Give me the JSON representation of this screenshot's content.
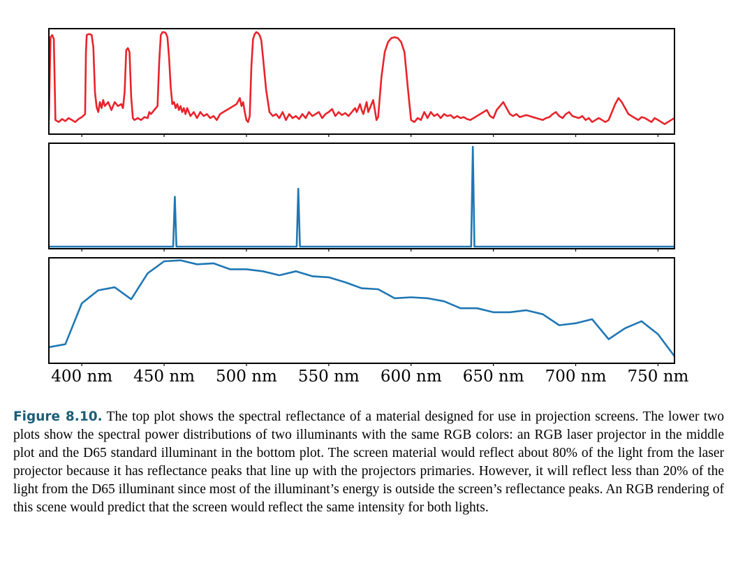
{
  "caption": {
    "label": "Figure 8.10.",
    "text": "The top plot shows the spectral reflectance of a material designed for use in projection screens. The lower two plots show the spectral power distributions of two illuminants with the same RGB colors: an RGB laser projector in the middle plot and the D65 standard illuminant in the bottom plot.  The screen material would reflect about 80% of the light from the laser projector because it has reflectance peaks that line up with the projectors primaries. However, it will reflect less than 20% of the light from the D65 illuminant since most of the illuminant’s energy is outside the screen’s reflectance peaks. An RGB rendering of this scene would predict that the screen would reflect the same intensity for both lights."
  },
  "chart_data": [
    {
      "type": "line",
      "title": "",
      "xlabel": "",
      "ylabel": "",
      "xlim": [
        380,
        760
      ],
      "ylim": [
        0,
        1.0
      ],
      "color": "#e8232a",
      "x": [
        380,
        381,
        382,
        383,
        384,
        386,
        388,
        390,
        392,
        394,
        396,
        398,
        400,
        402,
        402.5,
        403,
        404,
        405,
        406,
        407,
        408,
        409,
        410,
        411,
        412,
        413,
        414,
        416,
        418,
        420,
        422,
        424,
        425,
        426,
        427,
        428,
        429,
        430,
        431,
        432,
        434,
        436,
        438,
        440,
        441,
        442,
        444,
        446,
        447,
        448,
        449,
        450,
        451,
        452,
        453,
        454,
        455,
        456,
        457,
        458,
        459,
        460,
        461,
        462,
        463,
        464,
        466,
        468,
        470,
        472,
        474,
        476,
        478,
        480,
        482,
        484,
        486,
        488,
        490,
        492,
        494,
        496,
        497,
        498,
        499,
        500,
        501,
        502,
        503,
        504,
        505,
        506,
        507,
        508,
        509,
        510,
        512,
        514,
        516,
        518,
        520,
        522,
        524,
        526,
        528,
        530,
        532,
        534,
        536,
        538,
        540,
        542,
        544,
        546,
        548,
        550,
        552,
        554,
        556,
        558,
        560,
        562,
        564,
        565,
        566,
        567,
        568,
        569,
        570,
        571,
        572,
        573,
        574,
        575,
        576,
        577,
        578,
        579,
        580,
        582,
        584,
        586,
        588,
        590,
        592,
        594,
        596,
        598,
        600,
        602,
        604,
        606,
        608,
        610,
        612,
        614,
        616,
        618,
        620,
        622,
        624,
        626,
        628,
        630,
        632,
        634,
        636,
        638,
        640,
        642,
        644,
        646,
        648,
        650,
        652,
        654,
        656,
        658,
        660,
        662,
        664,
        666,
        668,
        670,
        672,
        674,
        676,
        678,
        680,
        682,
        684,
        686,
        688,
        690,
        692,
        694,
        696,
        698,
        700,
        702,
        704,
        706,
        708,
        710,
        712,
        714,
        716,
        718,
        720,
        722,
        724,
        726,
        728,
        730,
        732,
        734,
        736,
        738,
        740,
        742,
        744,
        746,
        748,
        750,
        752,
        754,
        756,
        758,
        760
      ],
      "y": [
        0.12,
        0.95,
        0.97,
        0.93,
        0.12,
        0.1,
        0.13,
        0.11,
        0.14,
        0.12,
        0.1,
        0.13,
        0.15,
        0.18,
        0.8,
        0.97,
        0.98,
        0.98,
        0.97,
        0.85,
        0.4,
        0.25,
        0.2,
        0.3,
        0.24,
        0.32,
        0.26,
        0.3,
        0.22,
        0.3,
        0.26,
        0.28,
        0.24,
        0.4,
        0.82,
        0.84,
        0.8,
        0.35,
        0.14,
        0.12,
        0.14,
        0.12,
        0.15,
        0.14,
        0.2,
        0.18,
        0.22,
        0.26,
        0.7,
        0.97,
        1.0,
        1.0,
        0.99,
        0.95,
        0.75,
        0.45,
        0.28,
        0.3,
        0.24,
        0.28,
        0.22,
        0.26,
        0.2,
        0.24,
        0.18,
        0.24,
        0.16,
        0.2,
        0.14,
        0.2,
        0.16,
        0.18,
        0.14,
        0.16,
        0.12,
        0.18,
        0.2,
        0.22,
        0.24,
        0.26,
        0.28,
        0.34,
        0.26,
        0.3,
        0.2,
        0.12,
        0.1,
        0.16,
        0.65,
        0.93,
        0.98,
        1.0,
        0.99,
        0.97,
        0.92,
        0.76,
        0.42,
        0.2,
        0.16,
        0.18,
        0.14,
        0.2,
        0.12,
        0.18,
        0.14,
        0.16,
        0.13,
        0.18,
        0.14,
        0.2,
        0.16,
        0.18,
        0.2,
        0.14,
        0.18,
        0.2,
        0.23,
        0.16,
        0.2,
        0.17,
        0.19,
        0.16,
        0.2,
        0.22,
        0.24,
        0.2,
        0.24,
        0.28,
        0.22,
        0.18,
        0.24,
        0.3,
        0.2,
        0.24,
        0.28,
        0.32,
        0.22,
        0.12,
        0.15,
        0.55,
        0.8,
        0.9,
        0.94,
        0.95,
        0.94,
        0.9,
        0.8,
        0.45,
        0.12,
        0.1,
        0.14,
        0.12,
        0.2,
        0.14,
        0.2,
        0.16,
        0.18,
        0.14,
        0.18,
        0.16,
        0.17,
        0.14,
        0.16,
        0.14,
        0.15,
        0.13,
        0.12,
        0.14,
        0.16,
        0.18,
        0.2,
        0.22,
        0.16,
        0.14,
        0.22,
        0.26,
        0.3,
        0.24,
        0.18,
        0.16,
        0.18,
        0.15,
        0.16,
        0.17,
        0.16,
        0.15,
        0.14,
        0.13,
        0.12,
        0.14,
        0.15,
        0.18,
        0.2,
        0.16,
        0.14,
        0.18,
        0.2,
        0.16,
        0.15,
        0.14,
        0.16,
        0.12,
        0.14,
        0.1,
        0.12,
        0.14,
        0.12,
        0.1,
        0.12,
        0.2,
        0.28,
        0.34,
        0.3,
        0.24,
        0.18,
        0.16,
        0.14,
        0.12,
        0.15,
        0.14,
        0.12,
        0.1,
        0.14,
        0.12,
        0.1,
        0.08,
        0.1,
        0.12,
        0.14
      ]
    },
    {
      "type": "line",
      "title": "",
      "xlabel": "",
      "ylabel": "",
      "xlim": [
        380,
        760
      ],
      "ylim": [
        0,
        1.0
      ],
      "color": "#1f77b4",
      "x": [
        380,
        455.5,
        456.5,
        457.5,
        530.5,
        531.5,
        532.5,
        636.5,
        637.5,
        638.5,
        760
      ],
      "y": [
        0,
        0,
        0.5,
        0,
        0,
        0.58,
        0,
        0,
        1.0,
        0,
        0
      ]
    },
    {
      "type": "line",
      "title": "",
      "xlabel": "",
      "ylabel": "",
      "xlim": [
        380,
        760
      ],
      "ylim": [
        0,
        1.0
      ],
      "color": "#1f77b4",
      "x": [
        380,
        390,
        400,
        410,
        420,
        430,
        440,
        450,
        460,
        470,
        480,
        490,
        500,
        510,
        520,
        530,
        540,
        550,
        560,
        570,
        580,
        590,
        600,
        610,
        620,
        630,
        640,
        650,
        660,
        670,
        680,
        690,
        700,
        710,
        720,
        730,
        740,
        750,
        760
      ],
      "y": [
        0.14,
        0.17,
        0.58,
        0.71,
        0.74,
        0.62,
        0.88,
        1.0,
        1.01,
        0.97,
        0.98,
        0.92,
        0.92,
        0.9,
        0.86,
        0.9,
        0.85,
        0.84,
        0.79,
        0.73,
        0.72,
        0.63,
        0.64,
        0.63,
        0.6,
        0.53,
        0.53,
        0.49,
        0.49,
        0.51,
        0.47,
        0.36,
        0.38,
        0.42,
        0.22,
        0.33,
        0.4,
        0.27,
        0.05
      ]
    }
  ],
  "axis": {
    "ticks": [
      {
        "value": 400,
        "label": "400 nm"
      },
      {
        "value": 450,
        "label": "450 nm"
      },
      {
        "value": 500,
        "label": "500 nm"
      },
      {
        "value": 550,
        "label": "550 nm"
      },
      {
        "value": 600,
        "label": "600 nm"
      },
      {
        "value": 650,
        "label": "650 nm"
      },
      {
        "value": 700,
        "label": "700 nm"
      },
      {
        "value": 750,
        "label": "750 nm"
      }
    ]
  }
}
